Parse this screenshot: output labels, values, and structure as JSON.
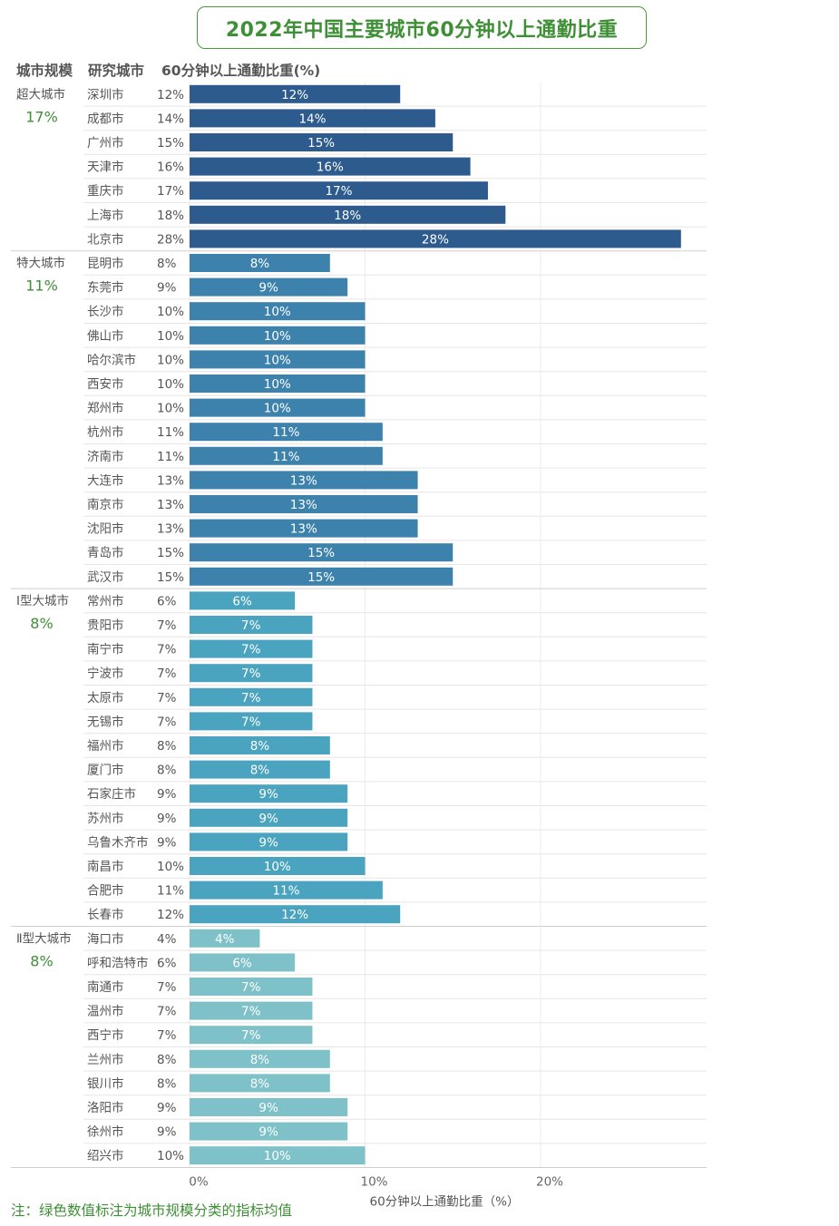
{
  "chart_data": {
    "type": "bar",
    "orientation": "horizontal",
    "title": "2022年中国主要城市60分钟以上通勤比重",
    "column_headers": [
      "城市规模",
      "研究城市",
      "60分钟以上通勤比重(%)"
    ],
    "xlabel": "60分钟以上通勤比重（%）",
    "xlim": [
      0,
      30
    ],
    "xticks": [
      "0%",
      "10%",
      "20%"
    ],
    "xtick_values": [
      0,
      10,
      20
    ],
    "note": "注：绿色数值标注为城市规模分类的指标均值",
    "groups": [
      {
        "name": "超大城市",
        "mean": "17%",
        "color": "#2d5b8e",
        "cities": [
          {
            "city": "深圳市",
            "value": 12,
            "label": "12%"
          },
          {
            "city": "成都市",
            "value": 14,
            "label": "14%"
          },
          {
            "city": "广州市",
            "value": 15,
            "label": "15%"
          },
          {
            "city": "天津市",
            "value": 16,
            "label": "16%"
          },
          {
            "city": "重庆市",
            "value": 17,
            "label": "17%"
          },
          {
            "city": "上海市",
            "value": 18,
            "label": "18%"
          },
          {
            "city": "北京市",
            "value": 28,
            "label": "28%"
          }
        ]
      },
      {
        "name": "特大城市",
        "mean": "11%",
        "color": "#3d82ad",
        "cities": [
          {
            "city": "昆明市",
            "value": 8,
            "label": "8%"
          },
          {
            "city": "东莞市",
            "value": 9,
            "label": "9%"
          },
          {
            "city": "长沙市",
            "value": 10,
            "label": "10%"
          },
          {
            "city": "佛山市",
            "value": 10,
            "label": "10%"
          },
          {
            "city": "哈尔滨市",
            "value": 10,
            "label": "10%"
          },
          {
            "city": "西安市",
            "value": 10,
            "label": "10%"
          },
          {
            "city": "郑州市",
            "value": 10,
            "label": "10%"
          },
          {
            "city": "杭州市",
            "value": 11,
            "label": "11%"
          },
          {
            "city": "济南市",
            "value": 11,
            "label": "11%"
          },
          {
            "city": "大连市",
            "value": 13,
            "label": "13%"
          },
          {
            "city": "南京市",
            "value": 13,
            "label": "13%"
          },
          {
            "city": "沈阳市",
            "value": 13,
            "label": "13%"
          },
          {
            "city": "青岛市",
            "value": 15,
            "label": "15%"
          },
          {
            "city": "武汉市",
            "value": 15,
            "label": "15%"
          }
        ]
      },
      {
        "name": "Ⅰ型大城市",
        "mean": "8%",
        "color": "#4aa3bf",
        "cities": [
          {
            "city": "常州市",
            "value": 6,
            "label": "6%"
          },
          {
            "city": "贵阳市",
            "value": 7,
            "label": "7%"
          },
          {
            "city": "南宁市",
            "value": 7,
            "label": "7%"
          },
          {
            "city": "宁波市",
            "value": 7,
            "label": "7%"
          },
          {
            "city": "太原市",
            "value": 7,
            "label": "7%"
          },
          {
            "city": "无锡市",
            "value": 7,
            "label": "7%"
          },
          {
            "city": "福州市",
            "value": 8,
            "label": "8%"
          },
          {
            "city": "厦门市",
            "value": 8,
            "label": "8%"
          },
          {
            "city": "石家庄市",
            "value": 9,
            "label": "9%"
          },
          {
            "city": "苏州市",
            "value": 9,
            "label": "9%"
          },
          {
            "city": "乌鲁木齐市",
            "value": 9,
            "label": "9%"
          },
          {
            "city": "南昌市",
            "value": 10,
            "label": "10%"
          },
          {
            "city": "合肥市",
            "value": 11,
            "label": "11%"
          },
          {
            "city": "长春市",
            "value": 12,
            "label": "12%"
          }
        ]
      },
      {
        "name": "Ⅱ型大城市",
        "mean": "8%",
        "color": "#7ec1c9",
        "cities": [
          {
            "city": "海口市",
            "value": 4,
            "label": "4%"
          },
          {
            "city": "呼和浩特市",
            "value": 6,
            "label": "6%"
          },
          {
            "city": "南通市",
            "value": 7,
            "label": "7%"
          },
          {
            "city": "温州市",
            "value": 7,
            "label": "7%"
          },
          {
            "city": "西宁市",
            "value": 7,
            "label": "7%"
          },
          {
            "city": "兰州市",
            "value": 8,
            "label": "8%"
          },
          {
            "city": "银川市",
            "value": 8,
            "label": "8%"
          },
          {
            "city": "洛阳市",
            "value": 9,
            "label": "9%"
          },
          {
            "city": "徐州市",
            "value": 9,
            "label": "9%"
          },
          {
            "city": "绍兴市",
            "value": 10,
            "label": "10%"
          }
        ]
      }
    ]
  }
}
